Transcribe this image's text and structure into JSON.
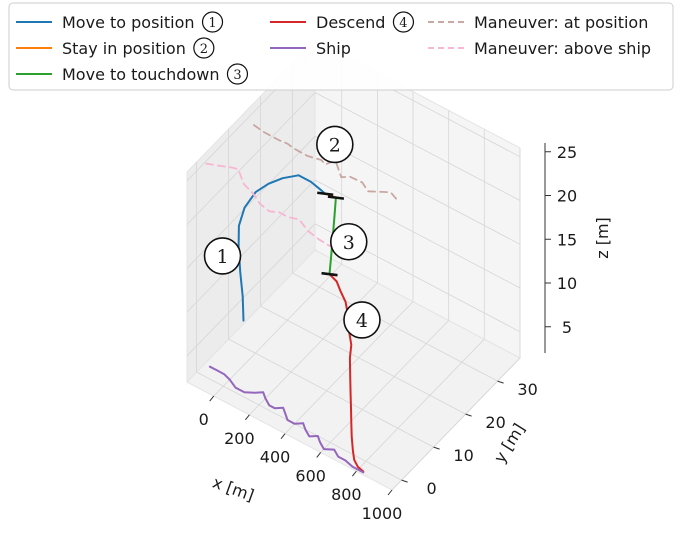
{
  "chart_data": {
    "type": "line3d",
    "xlabel": "x [m]",
    "ylabel": "y [m]",
    "zlabel": "z [m]",
    "xlim": [
      -150,
      1000
    ],
    "ylim": [
      -3,
      37
    ],
    "zlim": [
      2,
      26
    ],
    "xticks": [
      "0",
      "200",
      "400",
      "600",
      "800",
      "1000"
    ],
    "yticks": [
      "0",
      "10",
      "20",
      "30"
    ],
    "zticks": [
      "5",
      "10",
      "15",
      "20",
      "25"
    ],
    "grid": true,
    "legend_position": "top",
    "legend": {
      "columns": [
        [
          {
            "label": "Move to position",
            "color": "#1f77b4",
            "style": "solid",
            "marker": "1"
          },
          {
            "label": "Stay in position",
            "color": "#ff7f0e",
            "style": "solid",
            "marker": "2"
          },
          {
            "label": "Move to touchdown",
            "color": "#2ca02c",
            "style": "solid",
            "marker": "3"
          }
        ],
        [
          {
            "label": "Descend",
            "color": "#d62728",
            "style": "solid",
            "marker": "4"
          },
          {
            "label": "Ship",
            "color": "#9467bd",
            "style": "solid",
            "marker": ""
          }
        ],
        [
          {
            "label": "Maneuver: at position",
            "color": "#c9a8a3",
            "style": "dashed",
            "marker": ""
          },
          {
            "label": "Maneuver: above ship",
            "color": "#f7b6d2",
            "style": "dashed",
            "marker": ""
          }
        ]
      ]
    },
    "series": [
      {
        "name": "Move to position",
        "color": "#1f77b4",
        "points": [
          [
            -120,
            13,
            3.3
          ],
          [
            -125,
            13,
            6
          ],
          [
            -130,
            12.5,
            9
          ],
          [
            -130,
            12,
            12
          ],
          [
            -110,
            11,
            15
          ],
          [
            -60,
            10,
            18
          ],
          [
            20,
            9,
            21
          ],
          [
            100,
            8.5,
            23
          ],
          [
            180,
            8.5,
            24.5
          ],
          [
            260,
            9,
            25.5
          ],
          [
            330,
            9,
            25.5
          ],
          [
            380,
            9,
            25.2
          ],
          [
            410,
            9,
            25.0
          ]
        ]
      },
      {
        "name": "Stay in position",
        "color": "#ff7f0e",
        "points": [
          [
            410,
            9,
            25.0
          ],
          [
            440,
            9,
            25.1
          ],
          [
            470,
            9,
            25.2
          ]
        ]
      },
      {
        "name": "Move to touchdown",
        "color": "#2ca02c",
        "points": [
          [
            470,
            9,
            25.2
          ],
          [
            470,
            8.5,
            23
          ],
          [
            470,
            8,
            21
          ],
          [
            470,
            7.5,
            19
          ],
          [
            470,
            7,
            17.2
          ]
        ]
      },
      {
        "name": "Descend",
        "color": "#d62728",
        "points": [
          [
            470,
            7,
            17.2
          ],
          [
            510,
            7,
            16.8
          ],
          [
            530,
            7,
            16
          ],
          [
            560,
            7,
            15
          ],
          [
            575,
            7,
            13.5
          ],
          [
            590,
            6.5,
            12
          ],
          [
            610,
            6,
            11
          ],
          [
            620,
            5,
            10
          ],
          [
            640,
            4,
            8.5
          ],
          [
            660,
            3,
            7
          ],
          [
            680,
            2,
            6
          ],
          [
            700,
            1,
            5
          ],
          [
            720,
            0,
            4
          ],
          [
            745,
            -1,
            3
          ],
          [
            770,
            -2,
            2.6
          ],
          [
            800,
            -2.5,
            2.3
          ],
          [
            830,
            -2.5,
            2.1
          ]
        ]
      },
      {
        "name": "Ship",
        "color": "#9467bd",
        "points": [
          [
            -120,
            2.5,
            2
          ],
          [
            -80,
            2.5,
            2
          ],
          [
            -40,
            2.5,
            2
          ],
          [
            0,
            2,
            2
          ],
          [
            50,
            1,
            2
          ],
          [
            100,
            1,
            2
          ],
          [
            140,
            2,
            2
          ],
          [
            170,
            3,
            2
          ],
          [
            200,
            2,
            2
          ],
          [
            240,
            1,
            2
          ],
          [
            270,
            1,
            2
          ],
          [
            300,
            2,
            2
          ],
          [
            330,
            1,
            2
          ],
          [
            360,
            0,
            2
          ],
          [
            400,
            0,
            2
          ],
          [
            430,
            1,
            2
          ],
          [
            460,
            0,
            2
          ],
          [
            500,
            -1,
            2
          ],
          [
            530,
            0,
            2
          ],
          [
            560,
            -1,
            2
          ],
          [
            600,
            -2,
            2
          ],
          [
            640,
            -1,
            2
          ],
          [
            680,
            -2,
            2
          ],
          [
            720,
            -2,
            2
          ],
          [
            770,
            -2.5,
            2
          ],
          [
            830,
            -2.5,
            2
          ]
        ]
      },
      {
        "name": "Maneuver: at position",
        "color": "#c9a8a3",
        "dashed": true,
        "points": [
          [
            -80,
            14,
            25.7
          ],
          [
            -20,
            14,
            25.5
          ],
          [
            50,
            14.5,
            25.2
          ],
          [
            110,
            14,
            25.6
          ],
          [
            160,
            13,
            26
          ],
          [
            220,
            14,
            25.4
          ],
          [
            280,
            15,
            25.2
          ],
          [
            320,
            14,
            25.5
          ],
          [
            360,
            15,
            26
          ],
          [
            410,
            14,
            25
          ],
          [
            460,
            14,
            25.6
          ],
          [
            510,
            15,
            25.1
          ],
          [
            560,
            14,
            25
          ],
          [
            620,
            15,
            25.2
          ],
          [
            660,
            15.5,
            25.4
          ],
          [
            700,
            15,
            25.3
          ]
        ]
      },
      {
        "name": "Maneuver: above ship",
        "color": "#f7b6d2",
        "dashed": true,
        "points": [
          [
            -330,
            13,
            19
          ],
          [
            -260,
            13,
            19.5
          ],
          [
            -200,
            13,
            20
          ],
          [
            -150,
            13,
            20.3
          ],
          [
            -100,
            12,
            19.5
          ],
          [
            -50,
            12,
            19
          ],
          [
            0,
            11.5,
            18.5
          ],
          [
            50,
            11.5,
            18.2
          ],
          [
            100,
            12,
            18.4
          ],
          [
            150,
            12,
            18.4
          ],
          [
            200,
            12.5,
            18.5
          ],
          [
            260,
            12,
            18
          ],
          [
            320,
            12,
            17.7
          ],
          [
            380,
            12,
            17.6
          ],
          [
            440,
            12,
            17.4
          ]
        ]
      }
    ],
    "annotations": [
      {
        "label": "1",
        "x": -220,
        "y": 12,
        "z": 10
      },
      {
        "label": "2",
        "x": 410,
        "y": 12,
        "z": 29.5
      },
      {
        "label": "3",
        "x": 560,
        "y": 8,
        "z": 21.5
      },
      {
        "label": "4",
        "x": 670,
        "y": 6,
        "z": 14.5
      }
    ],
    "phase_markers": [
      {
        "x": 410,
        "y": 9,
        "z": 25.0
      },
      {
        "x": 470,
        "y": 9,
        "z": 25.2
      },
      {
        "x": 470,
        "y": 7,
        "z": 17.2
      }
    ]
  }
}
